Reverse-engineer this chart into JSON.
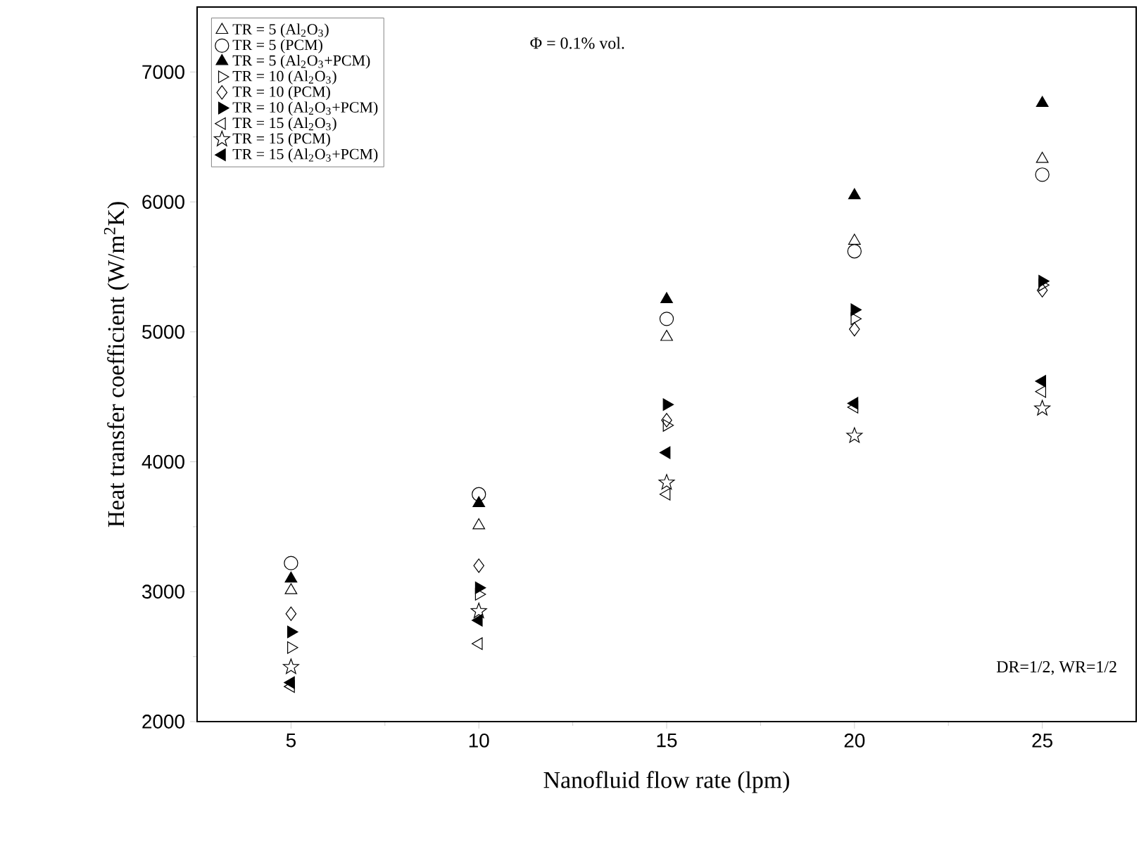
{
  "chart_data": {
    "type": "scatter",
    "xlabel": "Nanofluid flow rate (lpm)",
    "ylabel": "Heat transfer coefficient (W/m$^{2}$K)",
    "annotations": [
      "Φ = 0.1% vol.",
      "DR=1/2, WR=1/2"
    ],
    "x": [
      5,
      10,
      15,
      20,
      25
    ],
    "xlim": [
      2.5,
      27.5
    ],
    "xticks": [
      5,
      10,
      15,
      20,
      25
    ],
    "ylim": [
      2000,
      7500
    ],
    "yticks": [
      2000,
      3000,
      4000,
      5000,
      6000,
      7000
    ],
    "legend": "top left",
    "grid": false,
    "series": [
      {
        "name": "TR = 5  (Al$_{2}$O$_{3}$)",
        "color": "#000000",
        "marker": "triangle",
        "values": [
          3010,
          3510,
          4960,
          5700,
          6330
        ]
      },
      {
        "name": "TR = 5  (PCM)",
        "color": "#000000",
        "marker": "circle",
        "values": [
          3220,
          3750,
          5100,
          5620,
          6210
        ]
      },
      {
        "name": "TR = 5  (Al$_{2}$O$_{3}$+PCM)",
        "color": "#000000",
        "marker": "triangle-filled",
        "values": [
          3100,
          3680,
          5250,
          6050,
          6760
        ]
      },
      {
        "name": "TR = 10  (Al$_{2}$O$_{3}$)",
        "color": "#000000",
        "marker": "triangle-right",
        "values": [
          2570,
          2980,
          4280,
          5100,
          5360
        ]
      },
      {
        "name": "TR = 10  (PCM)",
        "color": "#000000",
        "marker": "diamond",
        "values": [
          2830,
          3200,
          4320,
          5020,
          5320
        ]
      },
      {
        "name": "TR = 10  (Al$_{2}$O$_{3}$+PCM)",
        "color": "#000000",
        "marker": "triangle-right-filled",
        "values": [
          2690,
          3030,
          4440,
          5170,
          5390
        ]
      },
      {
        "name": "TR = 15  (Al$_{2}$O$_{3}$)",
        "color": "#000000",
        "marker": "triangle-left",
        "values": [
          2270,
          2600,
          3750,
          4420,
          4540
        ]
      },
      {
        "name": "TR = 15  (PCM)",
        "color": "#000000",
        "marker": "star",
        "values": [
          2420,
          2850,
          3840,
          4200,
          4410
        ]
      },
      {
        "name": "TR = 15  (Al$_{2}$O$_{3}$+PCM)",
        "color": "#000000",
        "marker": "triangle-left-filled",
        "values": [
          2300,
          2780,
          4070,
          4450,
          4620
        ]
      }
    ]
  }
}
